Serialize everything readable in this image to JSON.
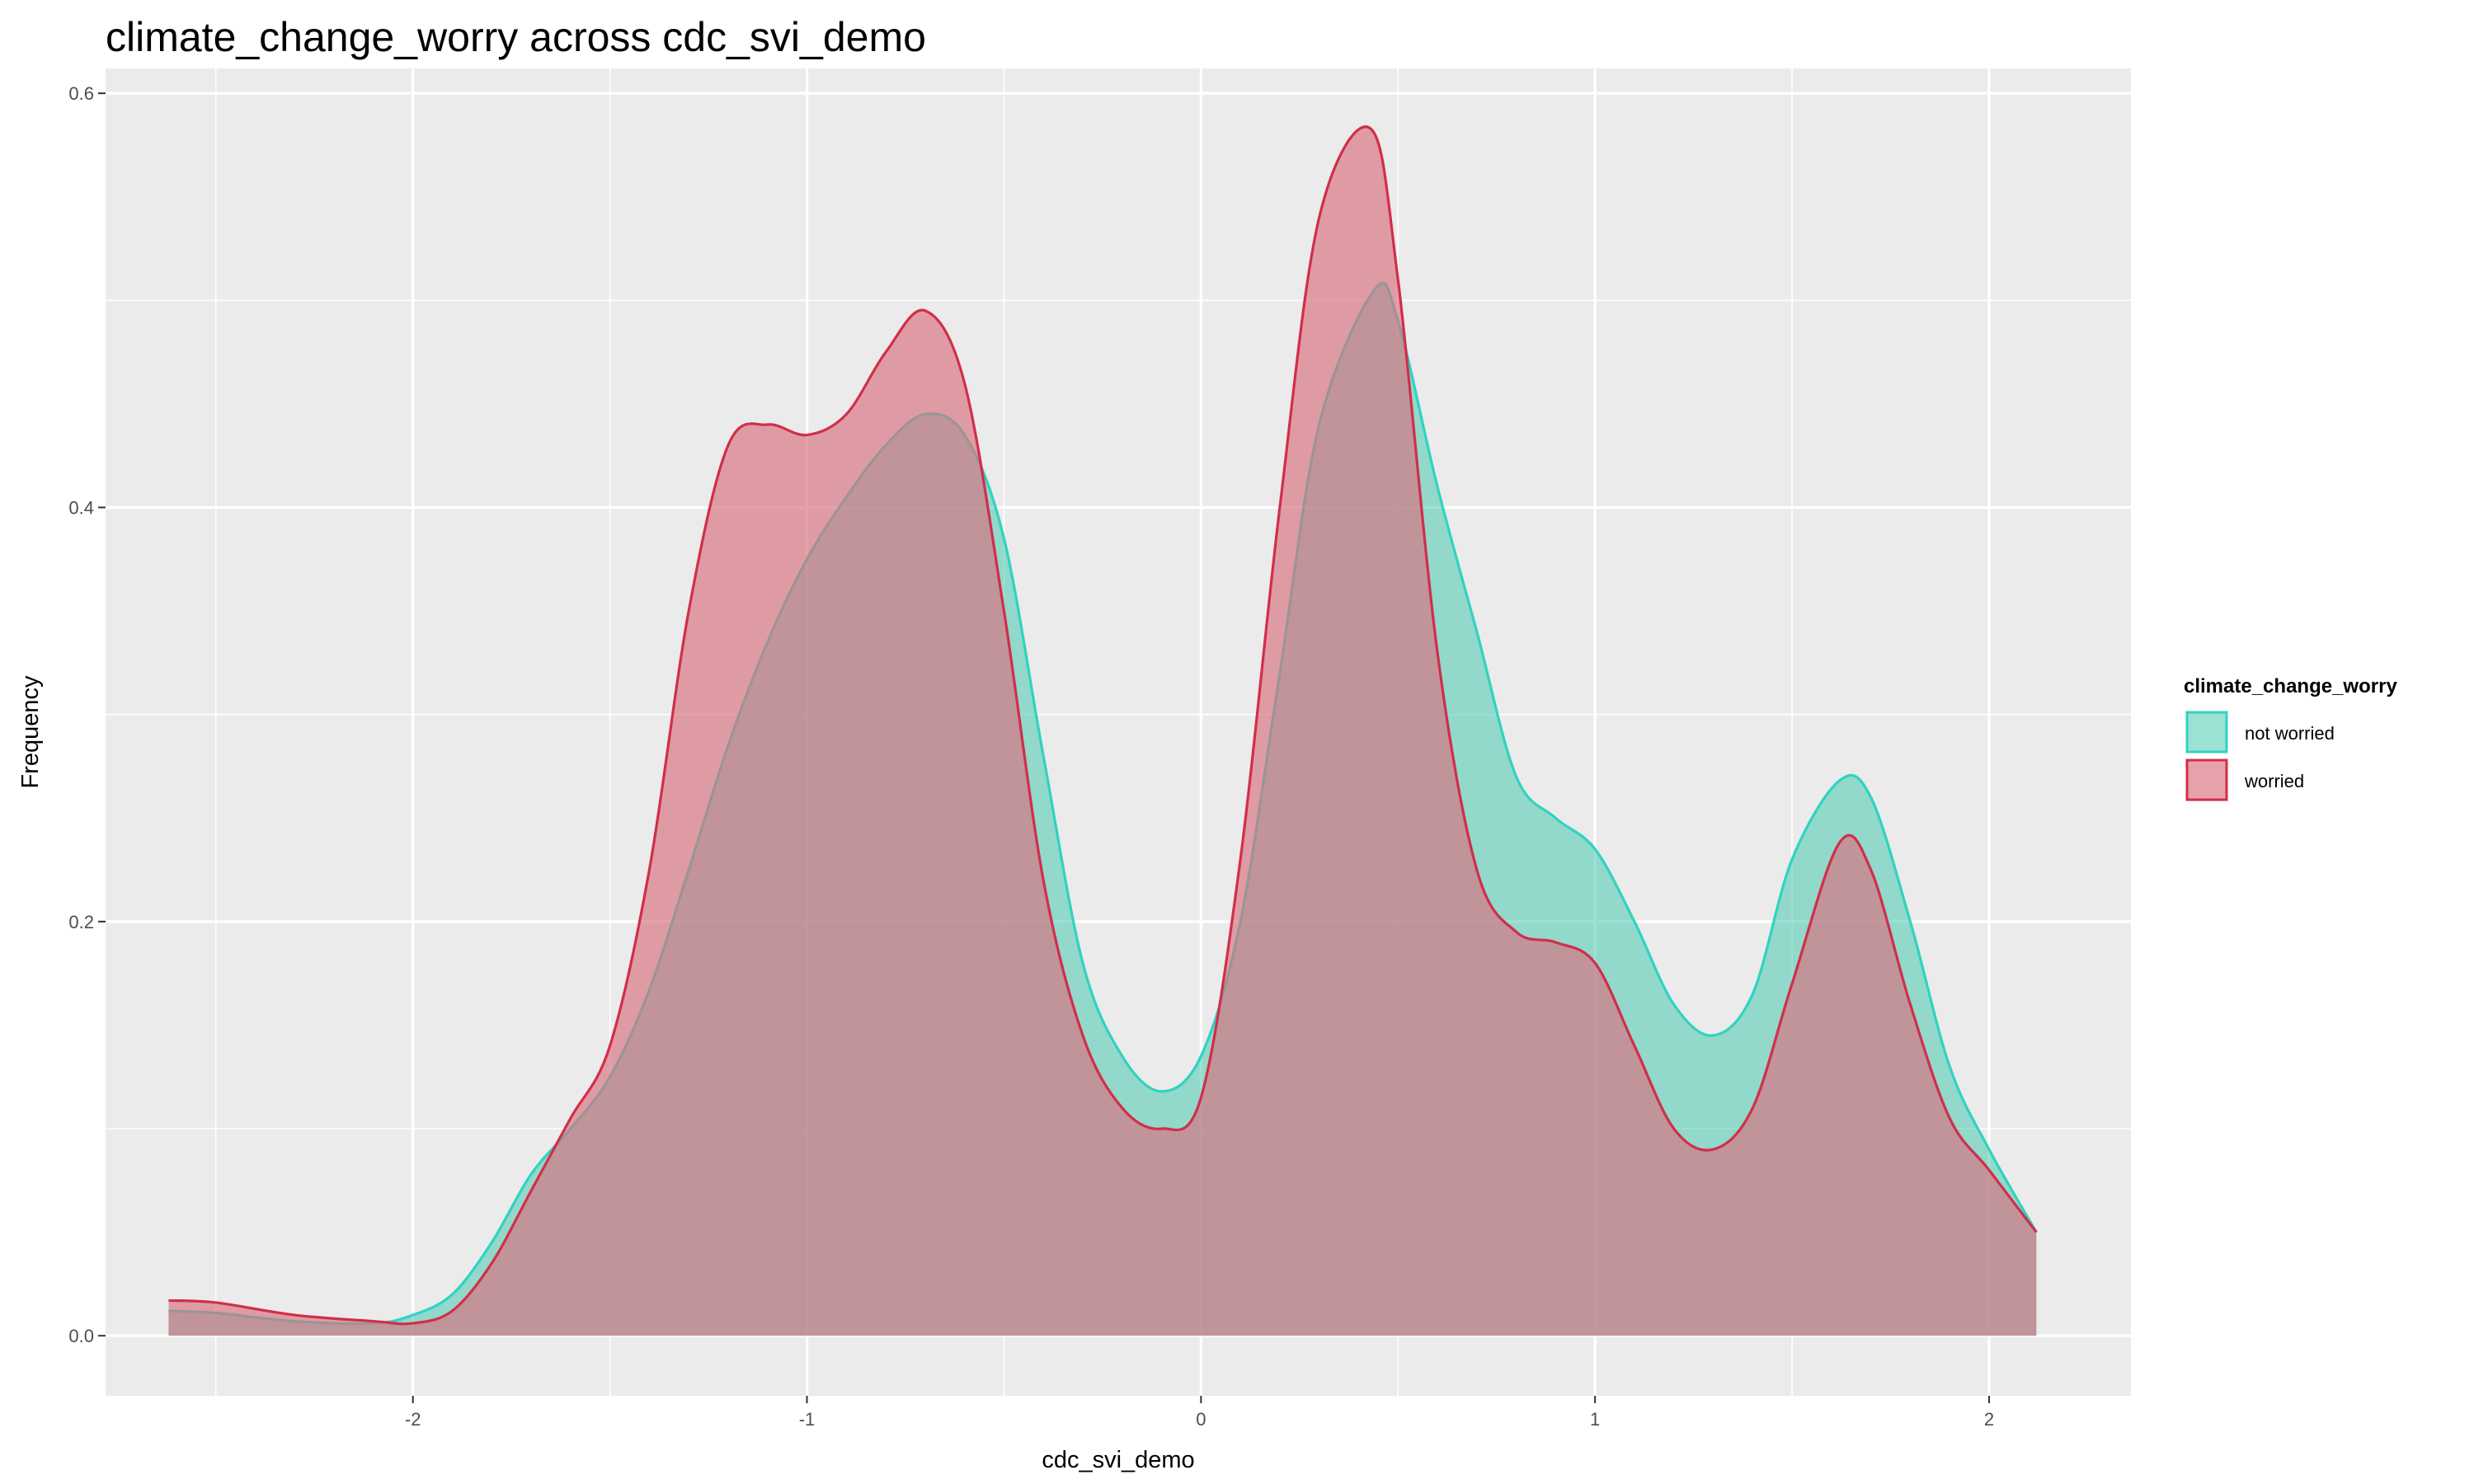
{
  "chart_data": {
    "type": "area",
    "title": "climate_change_worry across cdc_svi_demo",
    "xlabel": "cdc_svi_demo",
    "ylabel": "Frequency",
    "xlim": [
      -2.78,
      2.36
    ],
    "ylim": [
      -0.029,
      0.612
    ],
    "x_ticks": [
      -2,
      -1,
      0,
      1,
      2
    ],
    "x_tick_labels": [
      "-2",
      "-1",
      "0",
      "1",
      "2"
    ],
    "y_ticks": [
      0.0,
      0.2,
      0.4,
      0.6
    ],
    "y_tick_labels": [
      "0.0",
      "0.2",
      "0.4",
      "0.6"
    ],
    "grid": true,
    "background": "#ebebeb",
    "legend": {
      "title": "climate_change_worry",
      "placement": "right"
    },
    "series": [
      {
        "name": "not worried",
        "fill": "#48c9b0",
        "stroke": "#2fd3c1",
        "fill_opacity": 0.55,
        "x": [
          -2.62,
          -2.5,
          -2.3,
          -2.1,
          -2.0,
          -1.9,
          -1.8,
          -1.7,
          -1.6,
          -1.5,
          -1.4,
          -1.3,
          -1.2,
          -1.1,
          -1.0,
          -0.9,
          -0.8,
          -0.7,
          -0.6,
          -0.5,
          -0.4,
          -0.3,
          -0.2,
          -0.1,
          0.0,
          0.1,
          0.2,
          0.3,
          0.44,
          0.5,
          0.6,
          0.7,
          0.8,
          0.9,
          1.0,
          1.1,
          1.2,
          1.3,
          1.4,
          1.5,
          1.62,
          1.7,
          1.8,
          1.9,
          2.0,
          2.12
        ],
        "y": [
          0.012,
          0.011,
          0.007,
          0.006,
          0.01,
          0.02,
          0.045,
          0.078,
          0.1,
          0.125,
          0.167,
          0.225,
          0.285,
          0.335,
          0.375,
          0.405,
          0.43,
          0.445,
          0.435,
          0.385,
          0.28,
          0.18,
          0.135,
          0.118,
          0.135,
          0.2,
          0.32,
          0.44,
          0.505,
          0.49,
          0.41,
          0.34,
          0.27,
          0.25,
          0.235,
          0.2,
          0.16,
          0.145,
          0.165,
          0.23,
          0.268,
          0.26,
          0.2,
          0.13,
          0.09,
          0.05
        ]
      },
      {
        "name": "worried",
        "fill": "#d9707e",
        "stroke": "#d12e4a",
        "fill_opacity": 0.65,
        "x": [
          -2.62,
          -2.5,
          -2.3,
          -2.1,
          -2.0,
          -1.9,
          -1.8,
          -1.7,
          -1.6,
          -1.5,
          -1.4,
          -1.3,
          -1.2,
          -1.1,
          -1.0,
          -0.9,
          -0.8,
          -0.7,
          -0.6,
          -0.5,
          -0.4,
          -0.3,
          -0.2,
          -0.1,
          0.0,
          0.1,
          0.2,
          0.3,
          0.43,
          0.5,
          0.6,
          0.7,
          0.8,
          0.9,
          1.0,
          1.1,
          1.2,
          1.3,
          1.4,
          1.5,
          1.62,
          1.7,
          1.8,
          1.9,
          2.0,
          2.12
        ],
        "y": [
          0.017,
          0.016,
          0.01,
          0.007,
          0.006,
          0.012,
          0.035,
          0.07,
          0.105,
          0.14,
          0.225,
          0.35,
          0.43,
          0.44,
          0.435,
          0.445,
          0.475,
          0.495,
          0.46,
          0.35,
          0.22,
          0.145,
          0.11,
          0.1,
          0.115,
          0.23,
          0.4,
          0.54,
          0.583,
          0.51,
          0.33,
          0.225,
          0.195,
          0.19,
          0.18,
          0.14,
          0.1,
          0.09,
          0.11,
          0.17,
          0.238,
          0.225,
          0.16,
          0.105,
          0.08,
          0.05
        ]
      }
    ]
  }
}
